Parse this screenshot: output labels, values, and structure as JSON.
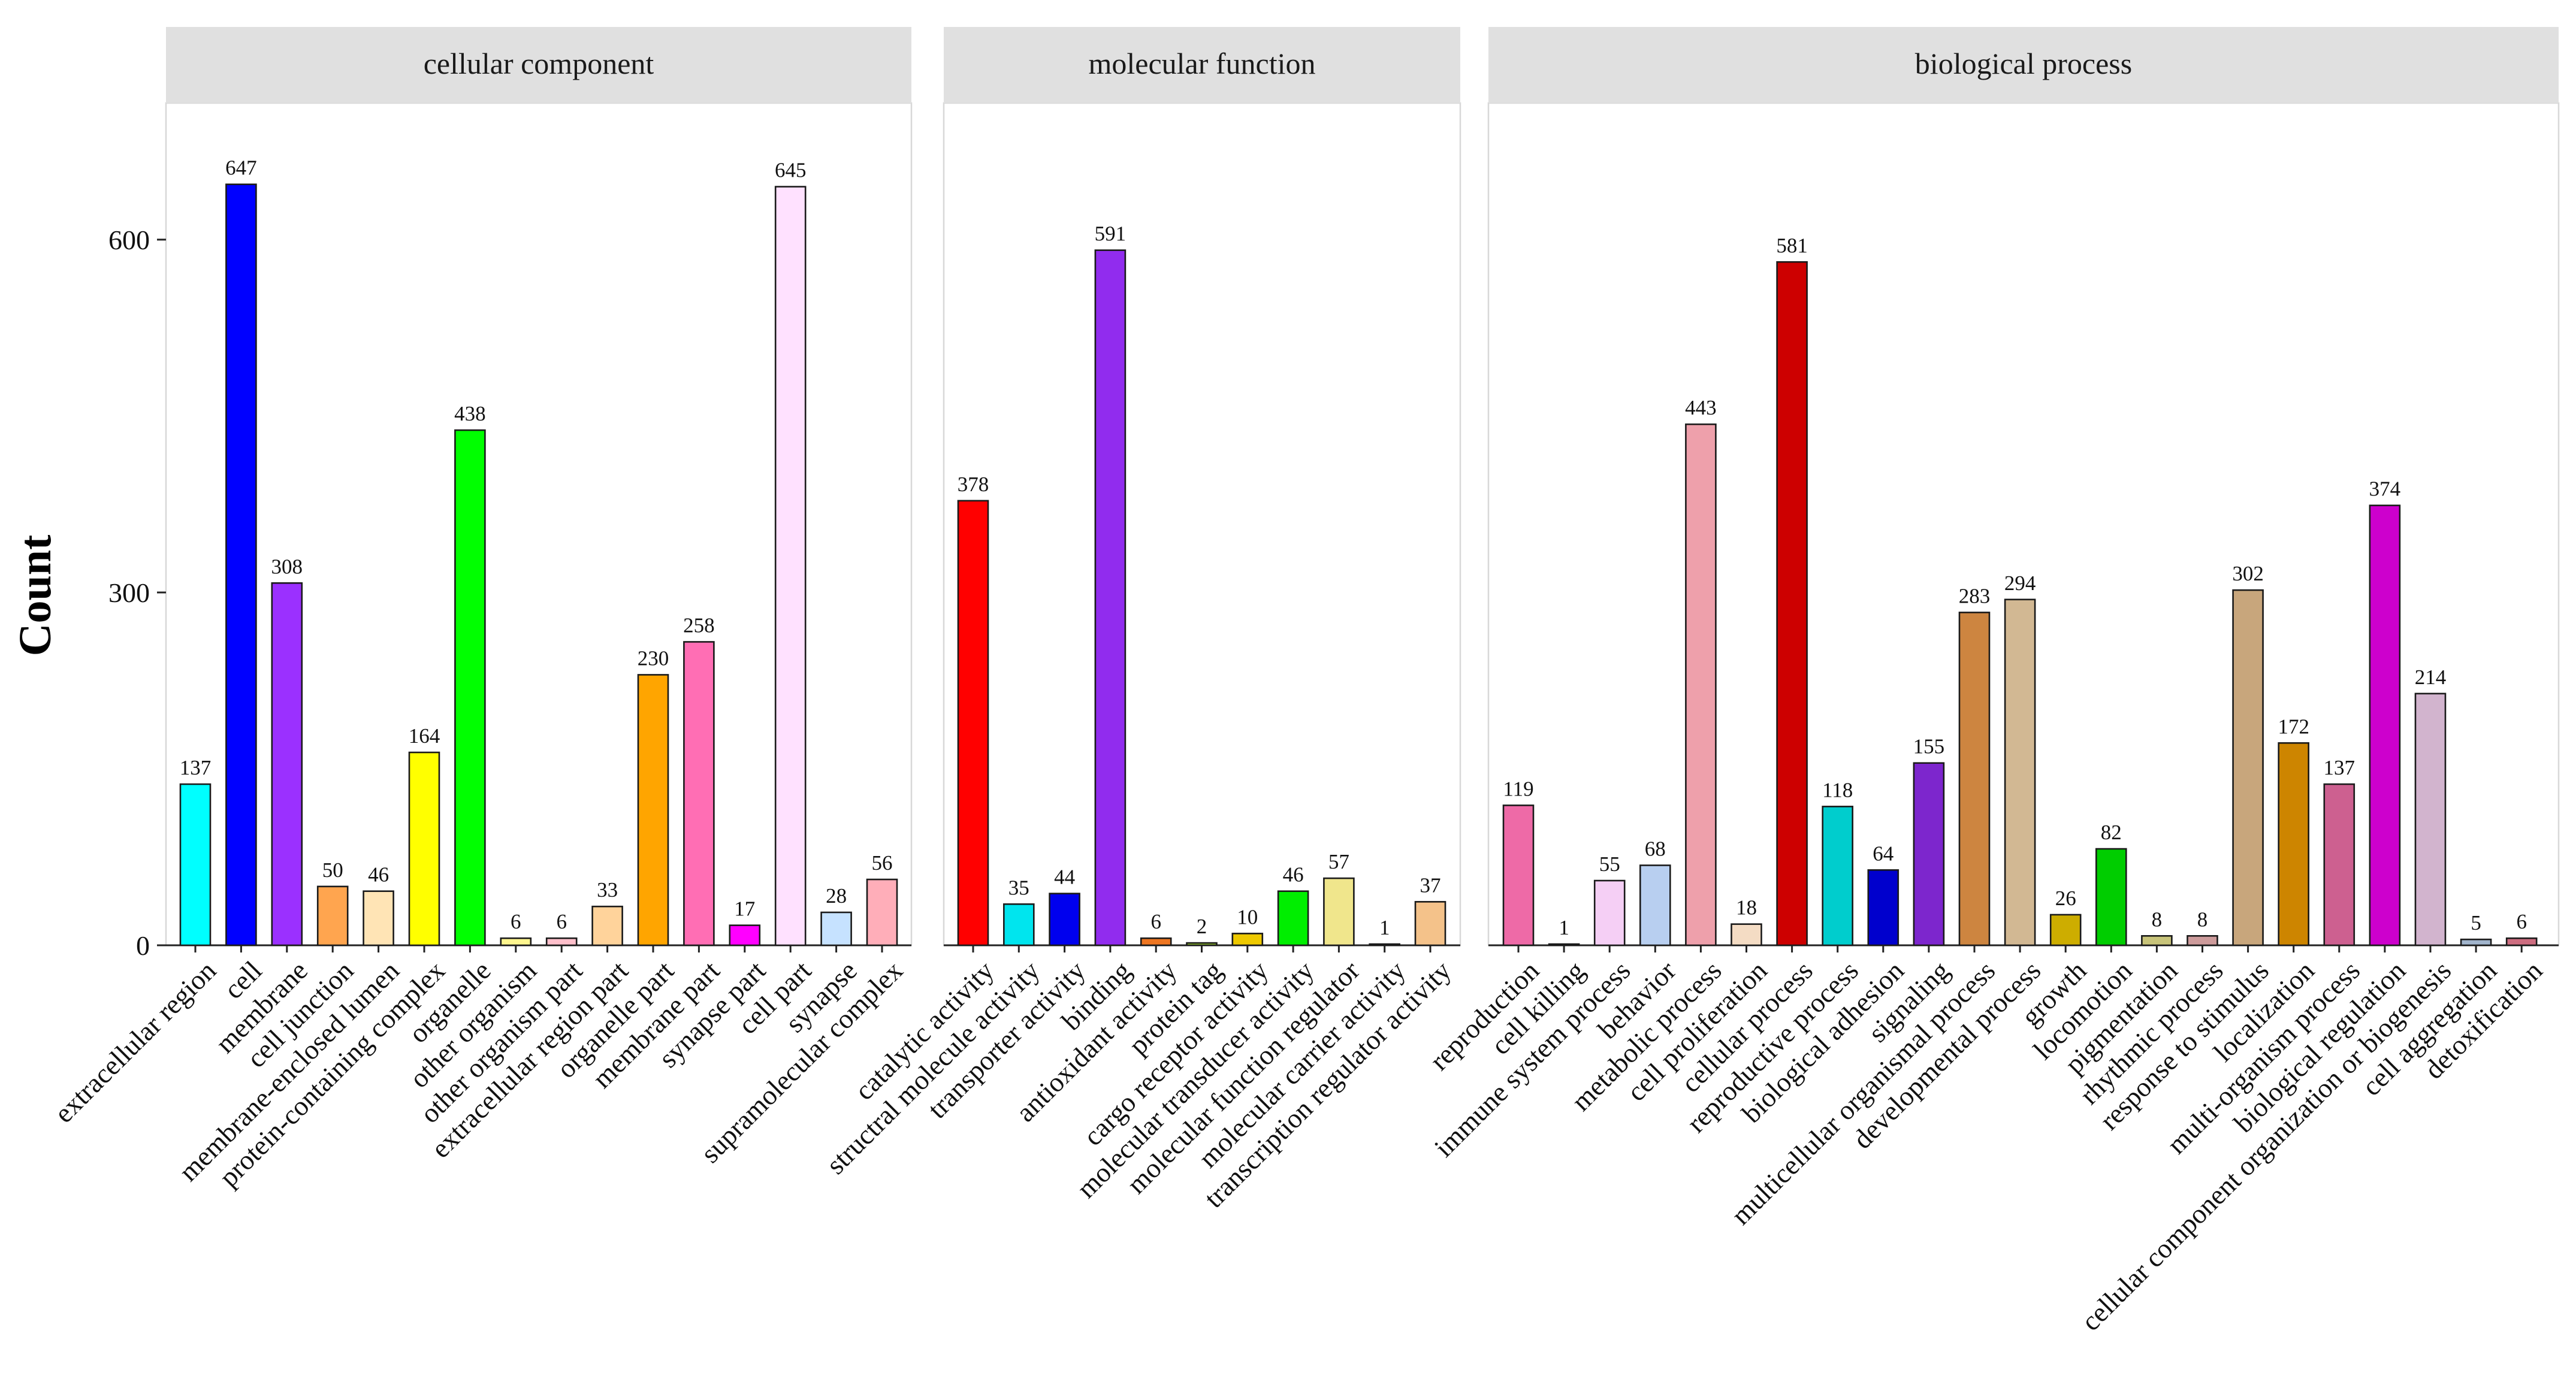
{
  "chart_data": {
    "type": "bar",
    "ylabel": "Count",
    "ylim": [
      0,
      720
    ],
    "yticks": [
      0,
      300,
      600
    ],
    "panels": [
      {
        "title": "cellular component",
        "categories": [
          "extracellular region",
          "cell",
          "membrane",
          "cell junction",
          "membrane-enclosed lumen",
          "protein-containing complex",
          "organelle",
          "other organism",
          "other organism part",
          "extracellular region part",
          "organelle part",
          "membrane part",
          "synapse part",
          "cell part",
          "synapse",
          "supramolecular complex"
        ],
        "values": [
          137,
          647,
          308,
          50,
          46,
          164,
          438,
          6,
          6,
          33,
          230,
          258,
          17,
          645,
          28,
          56
        ],
        "colors": [
          "#00ffff",
          "#0000ff",
          "#9b30ff",
          "#ffa54f",
          "#ffe4b5",
          "#ffff00",
          "#00ff00",
          "#fff68f",
          "#ffc0cb",
          "#ffd39b",
          "#ffa500",
          "#ff6eb4",
          "#ff00ff",
          "#ffe1ff",
          "#c6e2ff",
          "#ffaeb9"
        ]
      },
      {
        "title": "molecular function",
        "categories": [
          "catalytic activity",
          "structral molecule activity",
          "transporter activity",
          "binding",
          "antioxidant activity",
          "protein tag",
          "cargo receptor activity",
          "molecular transducer activity",
          "molecular function regulator",
          "molecular carrier activity",
          "transcription regulator activity"
        ],
        "values": [
          378,
          35,
          44,
          591,
          6,
          2,
          10,
          46,
          57,
          1,
          37
        ],
        "colors": [
          "#ff0000",
          "#00e5ee",
          "#0000ee",
          "#912cee",
          "#ee7621",
          "#9acd32",
          "#eec900",
          "#00ee00",
          "#f0e68c",
          "#6e8b3d",
          "#f4c28a"
        ]
      },
      {
        "title": "biological process",
        "categories": [
          "reproduction",
          "cell killing",
          "immune system process",
          "behavior",
          "metabolic process",
          "cell proliferation",
          "cellular process",
          "reproductive process",
          "biological adhesion",
          "signaling",
          "multicellular organismal  process",
          "developmental process",
          "growth",
          "locomotion",
          "pigmentation",
          "rhythmic process",
          "response to stimulus",
          "localization",
          "multi-organism process",
          "biological regulation",
          "cellular component organization or biogenesis",
          "cell aggregation",
          "detoxification"
        ],
        "values": [
          119,
          1,
          55,
          68,
          443,
          18,
          581,
          118,
          64,
          155,
          283,
          294,
          26,
          82,
          8,
          8,
          302,
          172,
          137,
          374,
          214,
          5,
          6
        ],
        "colors": [
          "#ee6aa7",
          "#36648b",
          "#f5cff5",
          "#b8cff0",
          "#eea0ab",
          "#f4dcc4",
          "#cd0000",
          "#00cdcd",
          "#0000cd",
          "#7d26cd",
          "#cd8540",
          "#d2b893",
          "#cdad00",
          "#00cd00",
          "#c8c47a",
          "#cd9b9b",
          "#c8a67c",
          "#cd8500",
          "#cd6090",
          "#cd00cd",
          "#d2b4ce",
          "#a2b5cd",
          "#cd6d80"
        ]
      }
    ]
  }
}
